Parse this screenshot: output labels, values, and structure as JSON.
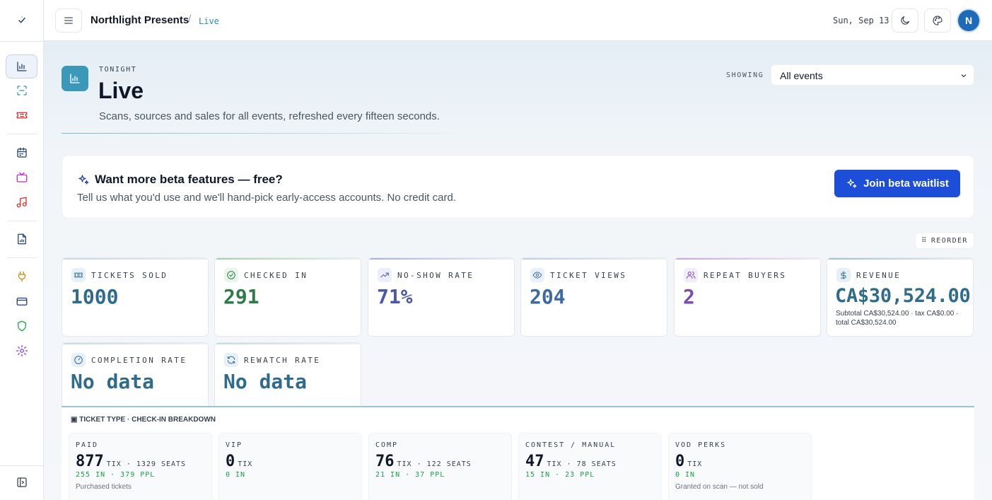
{
  "header": {
    "org_name": "Northlight Presents",
    "breadcrumb_sep": "/",
    "breadcrumb_current": "Live",
    "date": "Sun, Sep 13",
    "avatar_initial": "N"
  },
  "hero": {
    "eyebrow": "TONIGHT",
    "title": "Live",
    "subtitle": "Scans, sources and sales for all events, refreshed every fifteen seconds.",
    "showing_label": "SHOWING",
    "showing_value": "All events"
  },
  "beta": {
    "title": "Want more beta features — free?",
    "text": "Tell us what you'd use and we'll hand-pick early-access accounts. No credit card.",
    "button_label": "Join beta waitlist"
  },
  "reorder_label": "REORDER",
  "stats": [
    {
      "label": "TICKETS SOLD",
      "value": "1000",
      "color": "#2f6b8c",
      "icon": "ticket-icon"
    },
    {
      "label": "CHECKED IN",
      "value": "291",
      "color": "#2f7a47",
      "icon": "check-circle-icon"
    },
    {
      "label": "NO-SHOW RATE",
      "value": "71%",
      "color": "#4b57a8",
      "icon": "trend-icon"
    },
    {
      "label": "TICKET VIEWS",
      "value": "204",
      "color": "#3d6aa0",
      "icon": "eye-icon"
    },
    {
      "label": "REPEAT BUYERS",
      "value": "2",
      "color": "#7c4cb3",
      "icon": "users-icon"
    },
    {
      "label": "REVENUE",
      "value": "CA$30,524.00",
      "color": "#2f6b8c",
      "icon": "dollar-icon",
      "sub": "Subtotal CA$30,524.00 · tax CA$0.00 · total CA$30,524.00"
    },
    {
      "label": "COMPLETION RATE",
      "value": "No data",
      "color": "#2f6b8c",
      "icon": "gauge-icon"
    },
    {
      "label": "REWATCH RATE",
      "value": "No data",
      "color": "#2f6b8c",
      "icon": "refresh-icon"
    }
  ],
  "breakdown": {
    "title": "▣ TICKET TYPE · CHECK-IN BREAKDOWN",
    "types": [
      {
        "name": "PAID",
        "count": "877",
        "meta": "TIX · 1329 SEATS",
        "in": "255 IN · 379 PPL",
        "desc": "Purchased tickets"
      },
      {
        "name": "VIP",
        "count": "0",
        "meta": "TIX",
        "in": "0 IN",
        "desc": ""
      },
      {
        "name": "COMP",
        "count": "76",
        "meta": "TIX · 122 SEATS",
        "in": "21 IN · 37 PPL",
        "desc": ""
      },
      {
        "name": "CONTEST / MANUAL",
        "count": "47",
        "meta": "TIX · 78 SEATS",
        "in": "15 IN · 23 PPL",
        "desc": ""
      },
      {
        "name": "VOD PERKS",
        "count": "0",
        "meta": "TIX",
        "in": "0 IN",
        "desc": "Granted on scan — not sold"
      }
    ]
  }
}
